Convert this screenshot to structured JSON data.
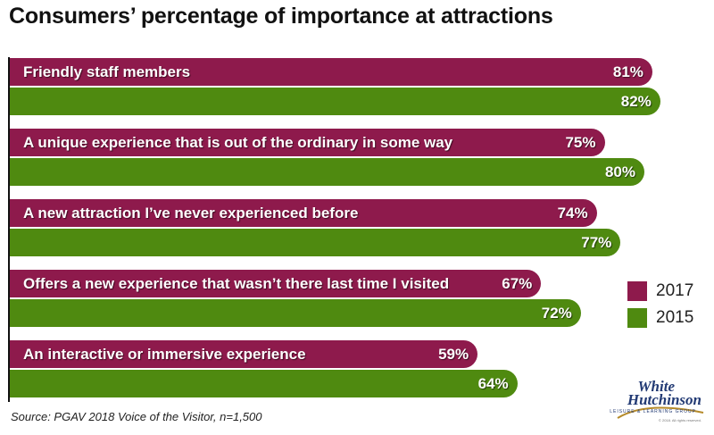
{
  "title": "Consumers’ percentage of importance at attractions",
  "source": "Source: PGAV 2018 Voice of the Visitor, n=1,500",
  "colors": {
    "2017": "#8e1a4c",
    "2015": "#4f8a10"
  },
  "chart_data": {
    "type": "bar",
    "orientation": "horizontal",
    "title": "Consumers’ percentage of importance at attractions",
    "categories": [
      "Friendly staff members",
      "A unique experience that is out of the ordinary in some way",
      "A new attraction I’ve never experienced before",
      "Offers a new experience that wasn’t there last time I visited",
      "An interactive or immersive experience"
    ],
    "series": [
      {
        "name": "2017",
        "values": [
          81,
          75,
          74,
          67,
          59
        ],
        "labels": [
          "81%",
          "75%",
          "74%",
          "67%",
          "59%"
        ]
      },
      {
        "name": "2015",
        "values": [
          82,
          80,
          77,
          72,
          64
        ],
        "labels": [
          "82%",
          "80%",
          "77%",
          "72%",
          "64%"
        ]
      }
    ],
    "legend": [
      {
        "name": "2017",
        "color": "#8e1a4c"
      },
      {
        "name": "2015",
        "color": "#4f8a10"
      }
    ],
    "legend_position": "right",
    "xlim": [
      0,
      100
    ],
    "grid": false
  },
  "logo": {
    "line1": "White",
    "line2": "Hutchinson",
    "tagline": "LEISURE & LEARNING GROUP",
    "copyright": "© 2018. All rights reserved."
  }
}
